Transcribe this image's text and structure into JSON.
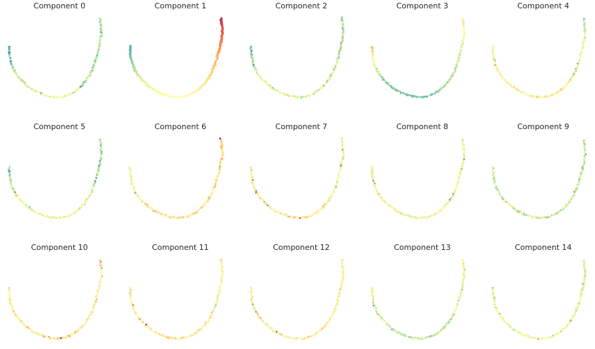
{
  "chart_data": {
    "type": "scatter",
    "layout": "grid-3x5",
    "axes_visible": false,
    "grid": false,
    "legend": "none",
    "colormap": [
      "#3288bd",
      "#66c2a5",
      "#abdda4",
      "#e6f598",
      "#ffffbf",
      "#fee08b",
      "#fdae61",
      "#f46d43",
      "#d53e4f",
      "#9e0142"
    ],
    "curve": {
      "x": [
        0.0,
        0.005,
        0.02,
        0.045,
        0.08,
        0.13,
        0.19,
        0.26,
        0.34,
        0.42,
        0.5,
        0.58,
        0.65,
        0.72,
        0.78,
        0.84,
        0.89,
        0.93,
        0.96,
        0.985,
        1.0,
        0.995,
        0.985
      ],
      "y": [
        0.65,
        0.55,
        0.45,
        0.37,
        0.3,
        0.23,
        0.165,
        0.105,
        0.06,
        0.03,
        0.015,
        0.02,
        0.045,
        0.09,
        0.15,
        0.23,
        0.33,
        0.45,
        0.58,
        0.7,
        0.8,
        0.9,
        1.0
      ]
    },
    "panels": [
      {
        "title": "Component 0",
        "profile": [
          0.05,
          0.2,
          0.3,
          0.4,
          0.38,
          0.3,
          0.2,
          0.22,
          0.25,
          0.2
        ],
        "noise": 0.12
      },
      {
        "title": "Component 1",
        "profile": [
          0.05,
          0.2,
          0.33,
          0.4,
          0.45,
          0.5,
          0.58,
          0.66,
          0.78,
          0.92
        ],
        "noise": 0.0
      },
      {
        "title": "Component 2",
        "profile": [
          0.1,
          0.25,
          0.35,
          0.38,
          0.35,
          0.32,
          0.3,
          0.28,
          0.25,
          0.22
        ],
        "noise": 0.12
      },
      {
        "title": "Component 3",
        "profile": [
          0.65,
          0.35,
          0.18,
          0.12,
          0.15,
          0.2,
          0.25,
          0.3,
          0.4,
          0.55
        ],
        "noise": 0.1
      },
      {
        "title": "Component 4",
        "profile": [
          0.4,
          0.42,
          0.45,
          0.48,
          0.5,
          0.5,
          0.45,
          0.42,
          0.35,
          0.28
        ],
        "noise": 0.15
      },
      {
        "title": "Component 5",
        "profile": [
          0.2,
          0.3,
          0.38,
          0.45,
          0.45,
          0.4,
          0.35,
          0.3,
          0.25,
          0.2
        ],
        "noise": 0.15
      },
      {
        "title": "Component 6",
        "profile": [
          0.45,
          0.45,
          0.48,
          0.5,
          0.52,
          0.52,
          0.5,
          0.5,
          0.55,
          0.62
        ],
        "noise": 0.15
      },
      {
        "title": "Component 7",
        "profile": [
          0.45,
          0.45,
          0.48,
          0.5,
          0.52,
          0.5,
          0.45,
          0.45,
          0.42,
          0.4
        ],
        "noise": 0.15
      },
      {
        "title": "Component 8",
        "profile": [
          0.45,
          0.45,
          0.45,
          0.42,
          0.42,
          0.45,
          0.45,
          0.42,
          0.4,
          0.45
        ],
        "noise": 0.15
      },
      {
        "title": "Component 9",
        "profile": [
          0.32,
          0.3,
          0.3,
          0.3,
          0.3,
          0.3,
          0.28,
          0.28,
          0.28,
          0.28
        ],
        "noise": 0.13
      },
      {
        "title": "Component 10",
        "profile": [
          0.45,
          0.48,
          0.5,
          0.5,
          0.52,
          0.5,
          0.48,
          0.46,
          0.48,
          0.55
        ],
        "noise": 0.13
      },
      {
        "title": "Component 11",
        "profile": [
          0.45,
          0.45,
          0.48,
          0.5,
          0.52,
          0.5,
          0.48,
          0.46,
          0.48,
          0.5
        ],
        "noise": 0.13
      },
      {
        "title": "Component 12",
        "profile": [
          0.45,
          0.45,
          0.48,
          0.5,
          0.5,
          0.48,
          0.46,
          0.45,
          0.45,
          0.48
        ],
        "noise": 0.13
      },
      {
        "title": "Component 13",
        "profile": [
          0.4,
          0.36,
          0.32,
          0.3,
          0.28,
          0.3,
          0.33,
          0.36,
          0.4,
          0.45
        ],
        "noise": 0.15
      },
      {
        "title": "Component 14",
        "profile": [
          0.35,
          0.38,
          0.4,
          0.42,
          0.42,
          0.4,
          0.38,
          0.35,
          0.32,
          0.3
        ],
        "noise": 0.13
      }
    ]
  }
}
